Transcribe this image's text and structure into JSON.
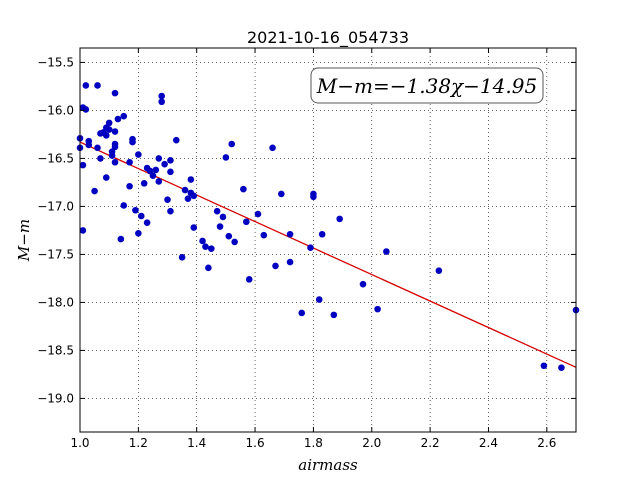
{
  "chart_data": {
    "type": "scatter",
    "title": "2021-10-16_054733",
    "xlabel": "airmass",
    "ylabel": "M−m",
    "xlim": [
      1.0,
      2.7
    ],
    "ylim": [
      -19.35,
      -15.35
    ],
    "y_inverted": true,
    "grid": true,
    "xticks": [
      1.0,
      1.2,
      1.4,
      1.6,
      1.8,
      2.0,
      2.2,
      2.4,
      2.6
    ],
    "xtick_labels": [
      "1.0",
      "1.2",
      "1.4",
      "1.6",
      "1.8",
      "2.0",
      "2.2",
      "2.4",
      "2.6"
    ],
    "yticks": [
      -15.5,
      -16.0,
      -16.5,
      -17.0,
      -17.5,
      -18.0,
      -18.5,
      -19.0
    ],
    "ytick_labels": [
      "−15.5",
      "−16.0",
      "−16.5",
      "−17.0",
      "−17.5",
      "−18.0",
      "−18.5",
      "−19.0"
    ],
    "annotation": "M−m=−1.38χ−14.95",
    "fit": {
      "slope": -1.38,
      "intercept": -14.95,
      "x_range": [
        1.0,
        2.7
      ],
      "color": "#d40000"
    },
    "point_color": "#0000c0",
    "points": [
      [
        1.0,
        -16.29
      ],
      [
        1.0,
        -16.39
      ],
      [
        1.01,
        -15.97
      ],
      [
        1.01,
        -16.57
      ],
      [
        1.01,
        -17.25
      ],
      [
        1.02,
        -15.74
      ],
      [
        1.02,
        -15.99
      ],
      [
        1.03,
        -16.32
      ],
      [
        1.03,
        -16.36
      ],
      [
        1.05,
        -16.84
      ],
      [
        1.06,
        -16.39
      ],
      [
        1.06,
        -15.74
      ],
      [
        1.07,
        -16.24
      ],
      [
        1.07,
        -16.5
      ],
      [
        1.08,
        -16.23
      ],
      [
        1.09,
        -16.18
      ],
      [
        1.09,
        -16.26
      ],
      [
        1.09,
        -16.7
      ],
      [
        1.1,
        -16.13
      ],
      [
        1.1,
        -16.2
      ],
      [
        1.11,
        -16.43
      ],
      [
        1.11,
        -16.47
      ],
      [
        1.12,
        -15.82
      ],
      [
        1.12,
        -16.22
      ],
      [
        1.12,
        -16.35
      ],
      [
        1.12,
        -16.38
      ],
      [
        1.13,
        -16.09
      ],
      [
        1.12,
        -16.54
      ],
      [
        1.14,
        -17.34
      ],
      [
        1.15,
        -16.06
      ],
      [
        1.15,
        -16.99
      ],
      [
        1.17,
        -16.54
      ],
      [
        1.17,
        -16.79
      ],
      [
        1.18,
        -16.3
      ],
      [
        1.18,
        -16.33
      ],
      [
        1.19,
        -17.04
      ],
      [
        1.2,
        -16.46
      ],
      [
        1.2,
        -17.28
      ],
      [
        1.21,
        -17.1
      ],
      [
        1.22,
        -16.76
      ],
      [
        1.23,
        -17.17
      ],
      [
        1.23,
        -16.6
      ],
      [
        1.24,
        -16.63
      ],
      [
        1.25,
        -16.68
      ],
      [
        1.26,
        -16.62
      ],
      [
        1.27,
        -16.74
      ],
      [
        1.27,
        -16.5
      ],
      [
        1.28,
        -15.85
      ],
      [
        1.28,
        -15.91
      ],
      [
        1.29,
        -16.56
      ],
      [
        1.3,
        -16.93
      ],
      [
        1.31,
        -16.52
      ],
      [
        1.31,
        -16.64
      ],
      [
        1.31,
        -17.05
      ],
      [
        1.33,
        -16.31
      ],
      [
        1.35,
        -17.53
      ],
      [
        1.36,
        -16.83
      ],
      [
        1.37,
        -16.92
      ],
      [
        1.38,
        -16.72
      ],
      [
        1.38,
        -16.86
      ],
      [
        1.39,
        -16.89
      ],
      [
        1.39,
        -17.22
      ],
      [
        1.42,
        -17.36
      ],
      [
        1.43,
        -17.42
      ],
      [
        1.44,
        -17.64
      ],
      [
        1.45,
        -17.44
      ],
      [
        1.47,
        -17.05
      ],
      [
        1.48,
        -17.21
      ],
      [
        1.49,
        -17.11
      ],
      [
        1.5,
        -16.49
      ],
      [
        1.51,
        -17.31
      ],
      [
        1.52,
        -16.35
      ],
      [
        1.53,
        -17.37
      ],
      [
        1.56,
        -16.82
      ],
      [
        1.57,
        -17.16
      ],
      [
        1.58,
        -17.76
      ],
      [
        1.61,
        -17.08
      ],
      [
        1.63,
        -17.3
      ],
      [
        1.66,
        -16.39
      ],
      [
        1.67,
        -17.62
      ],
      [
        1.69,
        -16.87
      ],
      [
        1.72,
        -17.29
      ],
      [
        1.72,
        -17.58
      ],
      [
        1.76,
        -18.11
      ],
      [
        1.79,
        -17.43
      ],
      [
        1.8,
        -16.87
      ],
      [
        1.8,
        -16.9
      ],
      [
        1.82,
        -17.97
      ],
      [
        1.83,
        -17.29
      ],
      [
        1.87,
        -18.13
      ],
      [
        1.89,
        -17.13
      ],
      [
        1.97,
        -17.81
      ],
      [
        2.02,
        -18.07
      ],
      [
        2.05,
        -17.47
      ],
      [
        2.23,
        -17.67
      ],
      [
        2.59,
        -18.66
      ],
      [
        2.65,
        -18.68
      ],
      [
        2.7,
        -18.08
      ]
    ]
  }
}
